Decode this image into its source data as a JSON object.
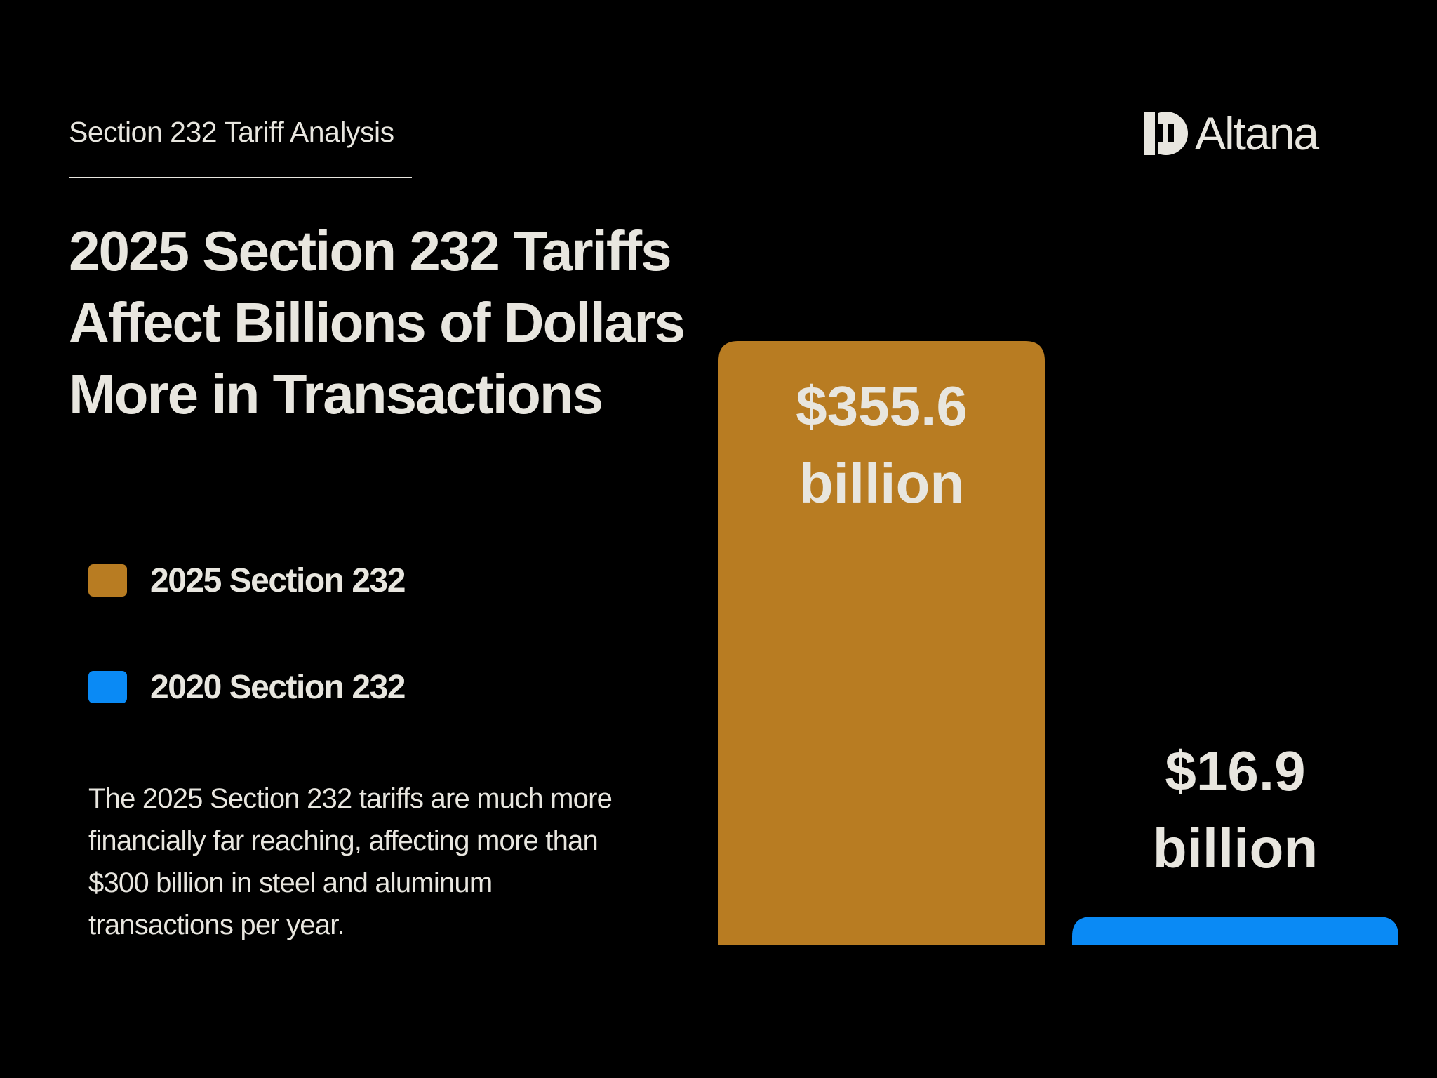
{
  "header": {
    "eyebrow": "Section 232 Tariff Analysis",
    "brand": "Altana"
  },
  "headline": "2025 Section 232 Tariffs Affect Billions of Dollars More in Transactions",
  "legend": [
    {
      "label": "2025 Section 232",
      "color": "#b87c22"
    },
    {
      "label": "2020 Section 232",
      "color": "#0a8af5"
    }
  ],
  "body": "The 2025 Section 232 tariffs are much more financially far reaching, affecting more than $300 billion in steel and aluminum transactions per year.",
  "colors": {
    "background": "#000000",
    "text": "#e8e6df"
  },
  "chart_data": {
    "type": "bar",
    "categories": [
      "2025 Section 232",
      "2020 Section 232"
    ],
    "values": [
      355.6,
      16.9
    ],
    "unit": "billion",
    "data_labels": [
      [
        "$355.6",
        "billion"
      ],
      [
        "$16.9",
        "billion"
      ]
    ],
    "colors": [
      "#b87c22",
      "#0a8af5"
    ],
    "title": "",
    "xlabel": "",
    "ylabel": "",
    "grid": false,
    "legend_position": "left"
  }
}
